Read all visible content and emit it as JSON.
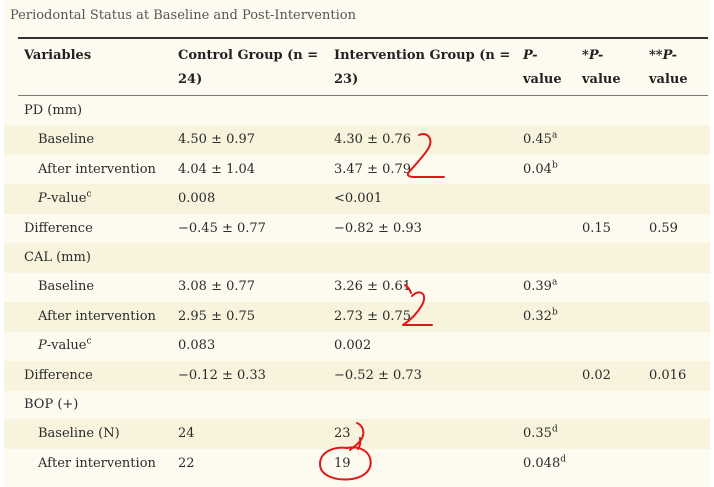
{
  "caption": "Periodontal Status at Baseline and Post-Intervention",
  "headers": {
    "variables": "Variables",
    "control_l1": "Control Group (n =",
    "control_l2": "24)",
    "intervention_l1": "Intervention Group (n =",
    "intervention_l2": "23)",
    "p_l1": "P-",
    "p_l2": "value",
    "sp_prefix": "*",
    "sp_p": "P-",
    "sp_l2": "value",
    "dsp_prefix": "**",
    "dsp_p": "P-",
    "dsp_l2": "value"
  },
  "rows": [
    {
      "label": "PD (mm)",
      "type": "section"
    },
    {
      "label": "Baseline",
      "control": "4.50 ± 0.97",
      "intervention": "4.30 ± 0.76",
      "p": "0.45",
      "p_sup": "a"
    },
    {
      "label": "After intervention",
      "control": "4.04 ± 1.04",
      "intervention": "3.47 ± 0.79",
      "p": "0.04",
      "p_sup": "b"
    },
    {
      "label_italic": "P",
      "label_rest": "-value",
      "label_sup": "c",
      "control": "0.008",
      "intervention": "<0.001"
    },
    {
      "label": "Difference",
      "control": "−0.45 ± 0.77",
      "intervention": "−0.82 ± 0.93",
      "star_p": "0.15",
      "dstar_p": "0.59"
    },
    {
      "label": "CAL (mm)",
      "type": "section"
    },
    {
      "label": "Baseline",
      "control": "3.08 ± 0.77",
      "intervention": "3.26 ± 0.61",
      "p": "0.39",
      "p_sup": "a"
    },
    {
      "label": "After intervention",
      "control": "2.95 ± 0.75",
      "intervention": "2.73 ± 0.75",
      "p": "0.32",
      "p_sup": "b"
    },
    {
      "label_italic": "P",
      "label_rest": "-value",
      "label_sup": "c",
      "control": "0.083",
      "intervention": "0.002"
    },
    {
      "label": "Difference",
      "control": "−0.12 ± 0.33",
      "intervention": "−0.52 ± 0.73",
      "star_p": "0.02",
      "dstar_p": "0.016"
    },
    {
      "label": "BOP (+)",
      "type": "section"
    },
    {
      "label": "Baseline (N)",
      "control": "24",
      "intervention": "23",
      "p": "0.35",
      "p_sup": "d"
    },
    {
      "label": "After intervention",
      "control": "22",
      "intervention": "19",
      "p": "0.048",
      "p_sup": "d"
    }
  ],
  "colors": {
    "background": "#fdfbf0",
    "stripe": "#f7f3dd",
    "annotation": "#e01818"
  }
}
